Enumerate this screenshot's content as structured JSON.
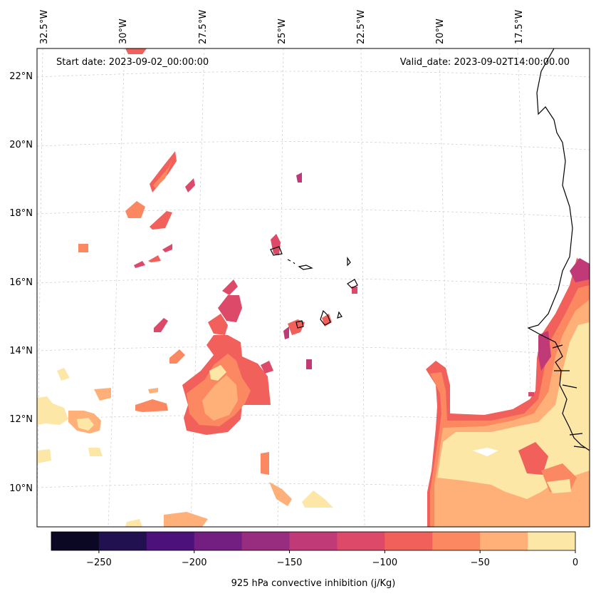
{
  "header": {
    "start_date": "Start date: 2023-09-02_00:00:00",
    "valid_date": "Valid_date: 2023-09-02T14:00:00.00"
  },
  "axes": {
    "lon_labels": [
      "32.5°W",
      "30°W",
      "27.5°W",
      "25°W",
      "22.5°W",
      "20°W",
      "17.5°W"
    ],
    "lat_labels": [
      "22°N",
      "20°N",
      "18°N",
      "16°N",
      "14°N",
      "12°N",
      "10°N"
    ]
  },
  "colorbar": {
    "label": "925 hPa convective inhibition (j/Kg)",
    "ticks": [
      "−250",
      "−200",
      "−150",
      "−100",
      "−50",
      "0"
    ],
    "range": [
      -275,
      0
    ],
    "colors": [
      "#0a0822",
      "#221150",
      "#4c117a",
      "#721f81",
      "#982d80",
      "#bf3a77",
      "#dd4968",
      "#f2605c",
      "#fb8861",
      "#feb078",
      "#fde7a6"
    ]
  },
  "chart_data": {
    "type": "heatmap",
    "variable": "925 hPa convective inhibition",
    "units": "j/Kg",
    "levels": [
      -275,
      -250,
      -225,
      -200,
      -175,
      -150,
      -125,
      -100,
      -75,
      -50,
      -25,
      0
    ],
    "lon_range": [
      -33,
      -15.5
    ],
    "lat_range": [
      9,
      22.8
    ]
  }
}
